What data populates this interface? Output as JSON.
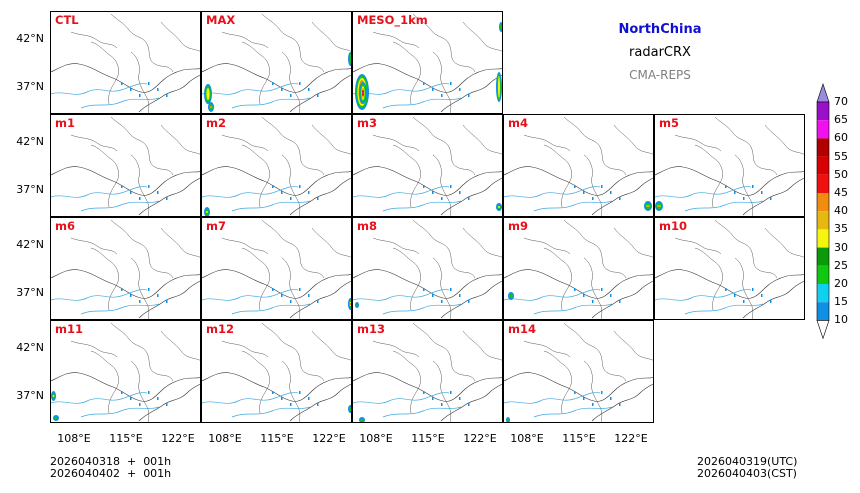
{
  "title": {
    "region": "NorthChina",
    "variable": "radarCRX",
    "source": "CMA-REPS"
  },
  "panels": [
    {
      "label": "CTL",
      "row": 0,
      "col": 0
    },
    {
      "label": "MAX",
      "row": 0,
      "col": 1
    },
    {
      "label": "MESO_1km",
      "row": 0,
      "col": 2
    },
    {
      "label": "m1",
      "row": 1,
      "col": 0
    },
    {
      "label": "m2",
      "row": 1,
      "col": 1
    },
    {
      "label": "m3",
      "row": 1,
      "col": 2
    },
    {
      "label": "m4",
      "row": 1,
      "col": 3
    },
    {
      "label": "m5",
      "row": 1,
      "col": 4
    },
    {
      "label": "m6",
      "row": 2,
      "col": 0
    },
    {
      "label": "m7",
      "row": 2,
      "col": 1
    },
    {
      "label": "m8",
      "row": 2,
      "col": 2
    },
    {
      "label": "m9",
      "row": 2,
      "col": 3
    },
    {
      "label": "m10",
      "row": 2,
      "col": 4
    },
    {
      "label": "m11",
      "row": 3,
      "col": 0
    },
    {
      "label": "m12",
      "row": 3,
      "col": 1
    },
    {
      "label": "m13",
      "row": 3,
      "col": 2
    },
    {
      "label": "m14",
      "row": 3,
      "col": 3
    }
  ],
  "axes": {
    "y_ticks": [
      "42°N",
      "37°N"
    ],
    "x_ticks": [
      "108°E",
      "115°E",
      "122°E"
    ]
  },
  "colorbar": {
    "levels": [
      "10",
      "15",
      "20",
      "25",
      "30",
      "35",
      "40",
      "45",
      "50",
      "55",
      "60",
      "65",
      "70"
    ],
    "colors": [
      "#0f8fe6",
      "#10d0f0",
      "#10c810",
      "#0a9a0a",
      "#f5f510",
      "#e6b810",
      "#f08c10",
      "#f01010",
      "#d80000",
      "#b00000",
      "#f010f0",
      "#9a10c8",
      "#9a8cdc"
    ]
  },
  "time": {
    "init_utc": "2026040318  +  001h",
    "init_cst": "2026040402  +  001h",
    "valid_utc": "2026040319(UTC)",
    "valid_cst": "2026040403(CST)"
  }
}
